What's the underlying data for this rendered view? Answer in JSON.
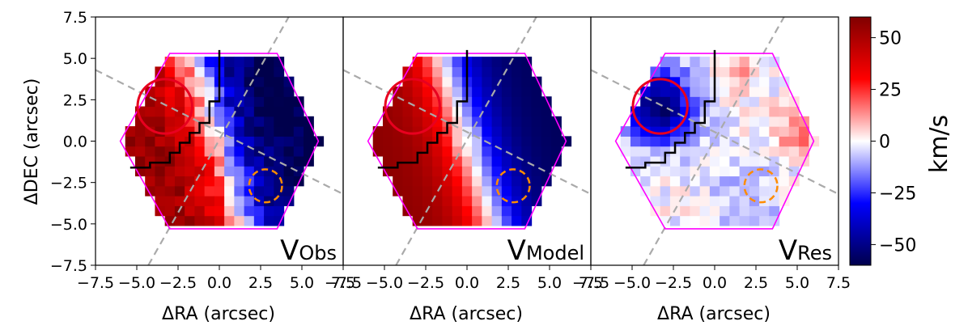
{
  "figure": {
    "ylabel": "ΔDEC (arcsec)",
    "xlabel": "ΔRA (arcsec)",
    "colorbar_label": "km/s"
  },
  "chart_data": [
    {
      "type": "heatmap",
      "panel": "V_Obs",
      "label_main": "V",
      "label_sub": "Obs",
      "xlabel": "ΔRA (arcsec)",
      "ylabel": "ΔDEC (arcsec)",
      "xlim": [
        -7.5,
        7.5
      ],
      "ylim": [
        -7.5,
        7.5
      ],
      "xticks": [
        "−7.5",
        "−5.0",
        "−2.5",
        "0.0",
        "2.5",
        "5.0",
        "7.5"
      ],
      "yticks": [
        "7.5",
        "5.0",
        "2.5",
        "0.0",
        "−2.5",
        "−5.0",
        "−7.5"
      ],
      "values_kms": {
        "west_side_max": 45,
        "east_side_min": -58
      },
      "overlays": {
        "hexagon_color": "#ff00ff",
        "red_circle": {
          "center": [
            -3.2,
            2.0
          ],
          "radius": 1.7
        },
        "orange_dashed_circle": {
          "center": [
            2.8,
            -2.7
          ],
          "radius": 1.0
        },
        "gray_dashed_lines": 2
      }
    },
    {
      "type": "heatmap",
      "panel": "V_Model",
      "label_main": "V",
      "label_sub": "Model",
      "xlabel": "ΔRA (arcsec)",
      "xlim": [
        -7.5,
        7.5
      ],
      "ylim": [
        -7.5,
        7.5
      ],
      "xticks": [
        "−7.5",
        "−5.0",
        "−2.5",
        "0.0",
        "2.5",
        "5.0",
        "7.5"
      ],
      "values_kms": {
        "west_side_max": 55,
        "east_side_min": -60
      }
    },
    {
      "type": "heatmap",
      "panel": "V_Res",
      "label_main": "V",
      "label_sub": "Res",
      "xlabel": "ΔRA (arcsec)",
      "xlim": [
        -7.5,
        7.5
      ],
      "ylim": [
        -7.5,
        7.5
      ],
      "xticks": [
        "−7.5",
        "−5.0",
        "−2.5",
        "0.0",
        "2.5",
        "5.0",
        "7.5"
      ],
      "values_kms": {
        "residual_min": -55,
        "residual_max": 20
      }
    },
    {
      "type": "colorbar",
      "label": "km/s",
      "colormap": "seismic",
      "range": [
        -60,
        60
      ],
      "ticks": [
        "50",
        "25",
        "0",
        "−25",
        "−50"
      ],
      "tick_values": [
        50,
        25,
        0,
        -25,
        -50
      ]
    }
  ],
  "colors": {
    "hexagon": "#ff00ff",
    "red_circle": "#e8001f",
    "orange_circle": "#ff8c00",
    "dashed_line": "#aaaaaa",
    "black_boundary": "#000000"
  }
}
